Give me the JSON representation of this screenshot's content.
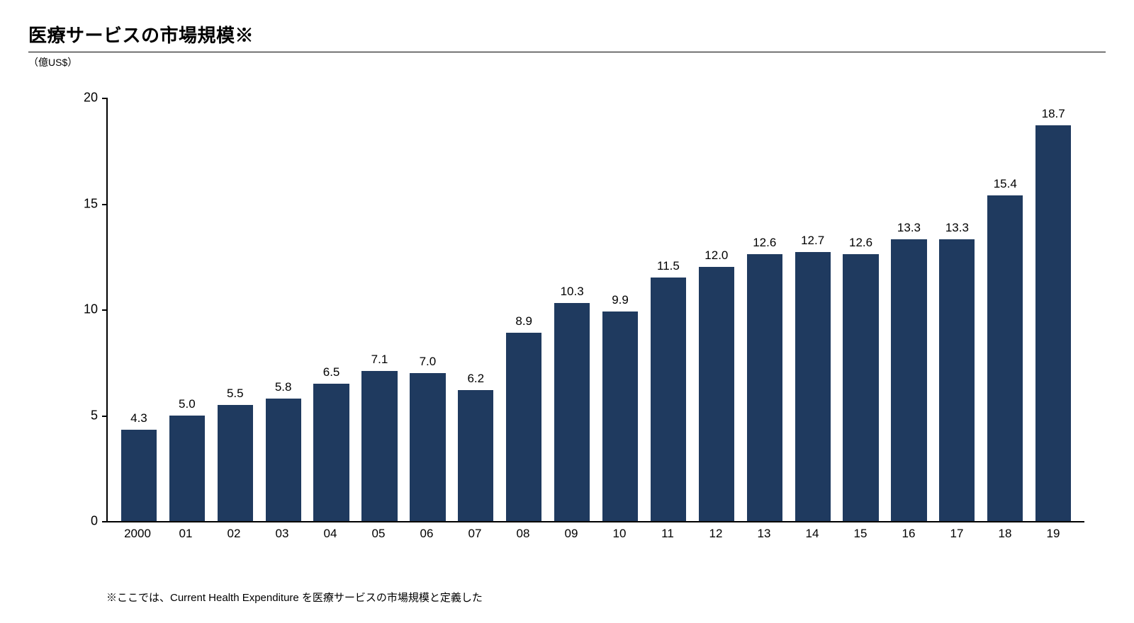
{
  "chart": {
    "type": "bar",
    "title": "医療サービスの市場規模※",
    "unit_label": "（億US$）",
    "footnote": "※ここでは、Current Health Expenditure を医療サービスの市場規模と定義した",
    "categories": [
      "2000",
      "01",
      "02",
      "03",
      "04",
      "05",
      "06",
      "07",
      "08",
      "09",
      "10",
      "11",
      "12",
      "13",
      "14",
      "15",
      "16",
      "17",
      "18",
      "19"
    ],
    "values": [
      4.3,
      5.0,
      5.5,
      5.8,
      6.5,
      7.1,
      7.0,
      6.2,
      8.9,
      10.3,
      9.9,
      11.5,
      12.0,
      12.6,
      12.7,
      12.6,
      13.3,
      13.3,
      15.4,
      18.7
    ],
    "value_labels": [
      "4.3",
      "5.0",
      "5.5",
      "5.8",
      "6.5",
      "7.1",
      "7.0",
      "6.2",
      "8.9",
      "10.3",
      "9.9",
      "11.5",
      "12.0",
      "12.6",
      "12.7",
      "12.6",
      "13.3",
      "13.3",
      "15.4",
      "18.7"
    ],
    "ylim": [
      0,
      20
    ],
    "ytick_step": 5,
    "ytick_labels": [
      "0",
      "5",
      "10",
      "15",
      "20"
    ],
    "bar_color": "#1f3a5f",
    "background_color": "#ffffff",
    "axis_color": "#000000",
    "title_fontsize": 26,
    "label_fontsize": 17,
    "value_label_fontsize": 17,
    "bar_width_ratio": 0.74
  }
}
